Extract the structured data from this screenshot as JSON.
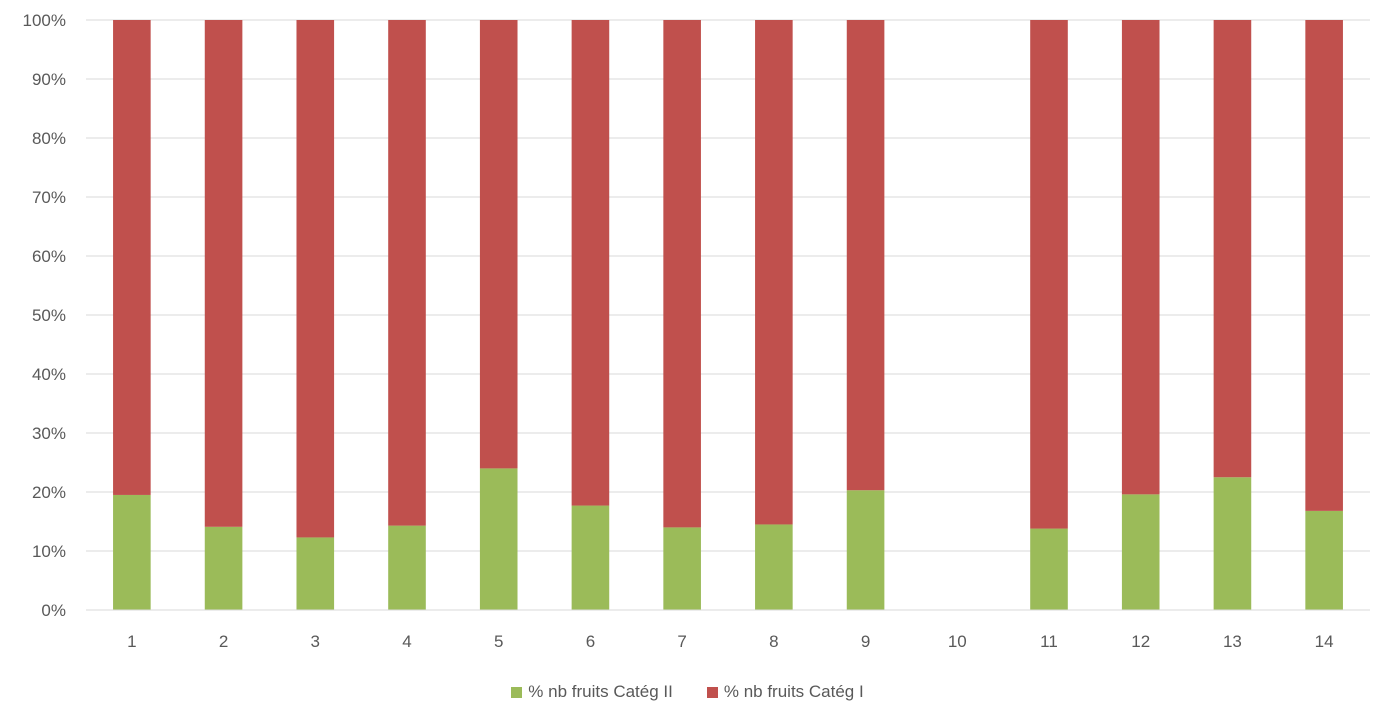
{
  "chart_data": {
    "type": "bar",
    "stacked": true,
    "percent_stacked": true,
    "categories": [
      "1",
      "2",
      "3",
      "4",
      "5",
      "6",
      "7",
      "8",
      "9",
      "10",
      "11",
      "12",
      "13",
      "14"
    ],
    "series": [
      {
        "name": "% nb fruits Catég II",
        "color": "#9BBB59",
        "values": [
          19.5,
          14.1,
          12.3,
          14.3,
          24.0,
          17.7,
          14.0,
          14.5,
          20.3,
          0,
          13.8,
          19.6,
          22.5,
          16.8
        ]
      },
      {
        "name": "% nb fruits Catég I",
        "color": "#C0504D",
        "values": [
          80.5,
          85.9,
          87.7,
          85.7,
          76.0,
          82.3,
          86.0,
          85.5,
          79.7,
          0,
          86.2,
          80.4,
          77.5,
          83.2
        ]
      }
    ],
    "y_ticks": [
      "0%",
      "10%",
      "20%",
      "30%",
      "40%",
      "50%",
      "60%",
      "70%",
      "80%",
      "90%",
      "100%"
    ],
    "ylim": [
      0,
      100
    ],
    "grid": true,
    "legend_position": "bottom"
  }
}
